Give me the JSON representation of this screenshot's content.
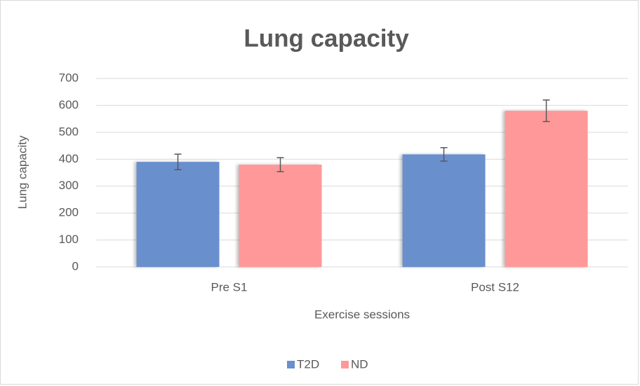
{
  "chart_data": {
    "type": "bar",
    "title": "Lung capacity",
    "x_label": "Exercise sessions",
    "y_label": "Lung capacity",
    "categories": [
      "Pre S1",
      "Post S12"
    ],
    "series": [
      {
        "name": "T2D",
        "color": "#6a8fcd",
        "values": [
          390,
          418
        ],
        "errors": [
          29,
          25
        ]
      },
      {
        "name": "ND",
        "color": "#ff9999",
        "values": [
          380,
          580
        ],
        "errors": [
          26,
          40
        ]
      }
    ],
    "ylim": [
      0,
      700
    ],
    "yticks": [
      0,
      100,
      200,
      300,
      400,
      500,
      600,
      700
    ],
    "grid": true,
    "legend": "bottom"
  }
}
